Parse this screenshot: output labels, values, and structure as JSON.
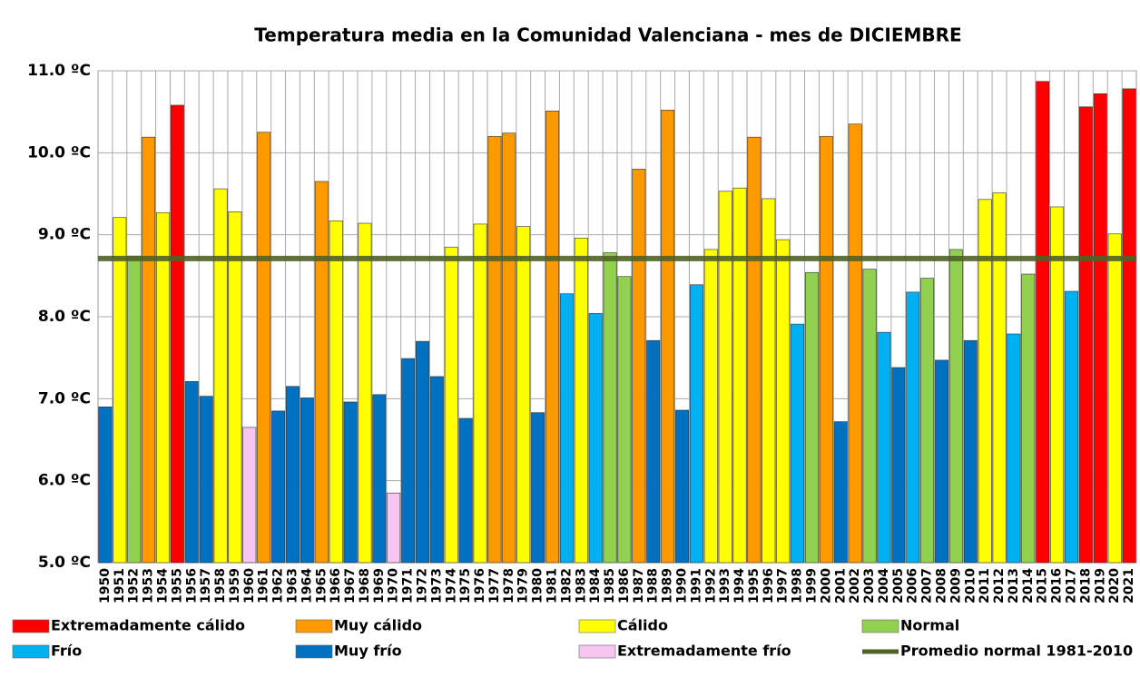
{
  "chart_data": {
    "type": "bar",
    "title": "Temperatura media en la Comunidad Valenciana - mes de DICIEMBRE",
    "categories": [
      "1950",
      "1951",
      "1952",
      "1953",
      "1954",
      "1955",
      "1956",
      "1957",
      "1958",
      "1959",
      "1960",
      "1961",
      "1962",
      "1963",
      "1964",
      "1965",
      "1966",
      "1967",
      "1968",
      "1969",
      "1970",
      "1971",
      "1972",
      "1973",
      "1974",
      "1975",
      "1976",
      "1977",
      "1978",
      "1979",
      "1980",
      "1981",
      "1982",
      "1983",
      "1984",
      "1985",
      "1986",
      "1987",
      "1988",
      "1989",
      "1990",
      "1991",
      "1992",
      "1993",
      "1994",
      "1995",
      "1996",
      "1997",
      "1998",
      "1999",
      "2000",
      "2001",
      "2002",
      "2003",
      "2004",
      "2005",
      "2006",
      "2007",
      "2008",
      "2009",
      "2010",
      "2011",
      "2012",
      "2013",
      "2014",
      "2015",
      "2016",
      "2017",
      "2018",
      "2019",
      "2020",
      "2021"
    ],
    "values": [
      6.9,
      9.21,
      8.74,
      10.19,
      9.27,
      10.58,
      7.21,
      7.03,
      9.56,
      9.28,
      6.65,
      10.25,
      6.85,
      7.15,
      7.01,
      9.65,
      9.17,
      6.96,
      9.14,
      7.05,
      5.85,
      7.49,
      7.7,
      7.27,
      8.85,
      6.76,
      9.13,
      10.2,
      10.24,
      9.1,
      6.83,
      10.51,
      8.28,
      8.96,
      8.04,
      8.78,
      8.49,
      9.8,
      7.71,
      10.52,
      6.86,
      8.39,
      8.82,
      9.53,
      9.57,
      10.19,
      9.44,
      8.94,
      7.91,
      8.54,
      10.2,
      6.72,
      10.35,
      8.58,
      7.81,
      7.38,
      8.3,
      8.47,
      7.47,
      8.82,
      7.71,
      9.43,
      9.51,
      7.79,
      8.52,
      10.87,
      9.34,
      8.31,
      10.56,
      10.72,
      9.01,
      10.78
    ],
    "colors": [
      "#0070c0",
      "#ffff00",
      "#92d050",
      "#ff9900",
      "#ffff00",
      "#ff0000",
      "#0070c0",
      "#0070c0",
      "#ffff00",
      "#ffff00",
      "#f6c6f0",
      "#ff9900",
      "#0070c0",
      "#0070c0",
      "#0070c0",
      "#ff9900",
      "#ffff00",
      "#0070c0",
      "#ffff00",
      "#0070c0",
      "#f6c6f0",
      "#0070c0",
      "#0070c0",
      "#0070c0",
      "#ffff00",
      "#0070c0",
      "#ffff00",
      "#ff9900",
      "#ff9900",
      "#ffff00",
      "#0070c0",
      "#ff9900",
      "#00b0f0",
      "#ffff00",
      "#00b0f0",
      "#92d050",
      "#92d050",
      "#ff9900",
      "#0070c0",
      "#ff9900",
      "#0070c0",
      "#00b0f0",
      "#ffff00",
      "#ffff00",
      "#ffff00",
      "#ff9900",
      "#ffff00",
      "#ffff00",
      "#00b0f0",
      "#92d050",
      "#ff9900",
      "#0070c0",
      "#ff9900",
      "#92d050",
      "#00b0f0",
      "#0070c0",
      "#00b0f0",
      "#92d050",
      "#0070c0",
      "#92d050",
      "#0070c0",
      "#ffff00",
      "#ffff00",
      "#00b0f0",
      "#92d050",
      "#ff0000",
      "#ffff00",
      "#00b0f0",
      "#ff0000",
      "#ff0000",
      "#ffff00",
      "#ff0000"
    ],
    "average": {
      "name": "Promedio normal 1981-2010",
      "value": 8.71,
      "color": "#4f6228"
    },
    "legend_position": "bottom",
    "legend": [
      {
        "name": "Extremadamente cálido",
        "color": "#ff0000"
      },
      {
        "name": "Muy cálido",
        "color": "#ff9900"
      },
      {
        "name": "Cálido",
        "color": "#ffff00"
      },
      {
        "name": "Normal",
        "color": "#92d050"
      },
      {
        "name": "Frío",
        "color": "#00b0f0"
      },
      {
        "name": "Muy frío",
        "color": "#0070c0"
      },
      {
        "name": "Extremadamente frío",
        "color": "#f6c6f0"
      }
    ],
    "ylim": [
      5,
      11
    ],
    "yticks": [
      {
        "value": 5,
        "label": "5.0 ºC"
      },
      {
        "value": 6,
        "label": "6.0 ºC"
      },
      {
        "value": 7,
        "label": "7.0 ºC"
      },
      {
        "value": 8,
        "label": "8.0 ºC"
      },
      {
        "value": 9,
        "label": "9.0 ºC"
      },
      {
        "value": 10,
        "label": "10.0 ºC"
      },
      {
        "value": 11,
        "label": "11.0 ºC"
      }
    ],
    "grid": true
  }
}
